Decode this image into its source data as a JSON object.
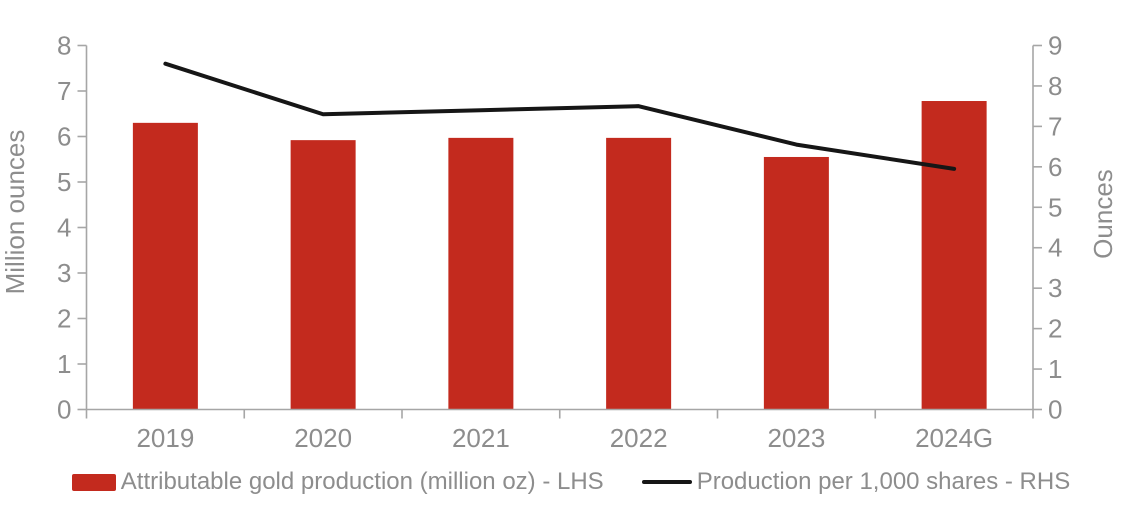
{
  "chart_data": {
    "type": "combo",
    "title": "",
    "categories": [
      "2019",
      "2020",
      "2021",
      "2022",
      "2023",
      "2024G"
    ],
    "series": [
      {
        "name": "Attributable gold production (million oz) - LHS",
        "type": "bar",
        "axis": "left",
        "color": "#c32a1e",
        "values": [
          6.3,
          5.92,
          5.97,
          5.97,
          5.55,
          6.78
        ]
      },
      {
        "name": "Production per 1,000 shares - RHS",
        "type": "line",
        "axis": "right",
        "color": "#161616",
        "values": [
          8.55,
          7.3,
          7.4,
          7.5,
          6.55,
          5.95
        ]
      }
    ],
    "left_axis": {
      "label": "Million ounces",
      "min": 0,
      "max": 8,
      "step": 1
    },
    "right_axis": {
      "label": "Ounces",
      "min": 0,
      "max": 9,
      "step": 1
    },
    "legend_position": "bottom",
    "grid": false
  },
  "style": {
    "axis_line_color": "#a6a6a6",
    "text_color": "#8d8d8d"
  }
}
